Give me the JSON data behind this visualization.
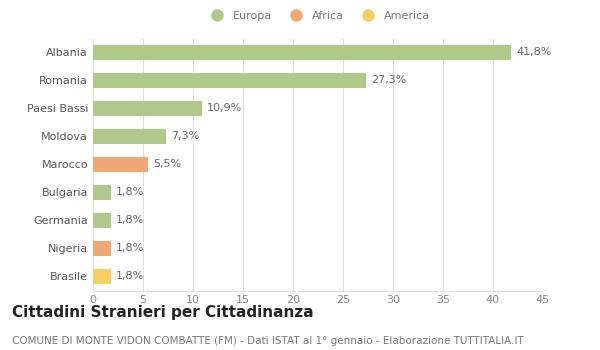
{
  "categories": [
    "Albania",
    "Romania",
    "Paesi Bassi",
    "Moldova",
    "Marocco",
    "Bulgaria",
    "Germania",
    "Nigeria",
    "Brasile"
  ],
  "values": [
    41.8,
    27.3,
    10.9,
    7.3,
    5.5,
    1.8,
    1.8,
    1.8,
    1.8
  ],
  "labels": [
    "41,8%",
    "27,3%",
    "10,9%",
    "7,3%",
    "5,5%",
    "1,8%",
    "1,8%",
    "1,8%",
    "1,8%"
  ],
  "colors": [
    "#aec98a",
    "#aec98a",
    "#aec98a",
    "#aec98a",
    "#f0a875",
    "#aec98a",
    "#aec98a",
    "#f0a875",
    "#f5d060"
  ],
  "legend": [
    {
      "label": "Europa",
      "color": "#aec98a"
    },
    {
      "label": "Africa",
      "color": "#f0a875"
    },
    {
      "label": "America",
      "color": "#f5d060"
    }
  ],
  "xlim": [
    0,
    45
  ],
  "xticks": [
    0,
    5,
    10,
    15,
    20,
    25,
    30,
    35,
    40,
    45
  ],
  "title": "Cittadini Stranieri per Cittadinanza",
  "subtitle": "COMUNE DI MONTE VIDON COMBATTE (FM) - Dati ISTAT al 1° gennaio - Elaborazione TUTTITALIA.IT",
  "background_color": "#ffffff",
  "grid_color": "#e0e0e0",
  "bar_height": 0.55,
  "title_fontsize": 11,
  "subtitle_fontsize": 7.5,
  "label_fontsize": 8,
  "tick_fontsize": 8
}
